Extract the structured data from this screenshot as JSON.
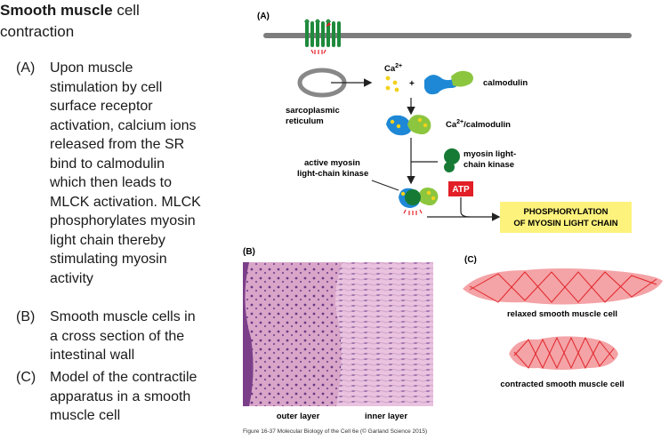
{
  "title": {
    "bold": "Smooth muscle",
    "rest_line1": " cell",
    "line2": "contraction"
  },
  "descriptions": [
    {
      "label": "(A)",
      "lines": [
        "Upon muscle",
        "stimulation by cell",
        "surface receptor",
        "activation, calcium ions",
        "released from the SR",
        "bind to calmodulin",
        "which then leads to",
        "MLCK activation. MLCK",
        "phosphorylates myosin",
        "light chain thereby",
        "stimulating myosin",
        "activity"
      ]
    },
    {
      "label": "(B)",
      "lines": [
        "Smooth muscle cells in",
        "a cross section of the",
        "intestinal wall"
      ]
    },
    {
      "label": "(C)",
      "lines": [
        "Model of the contractile",
        "apparatus in a smooth",
        "muscle cell"
      ]
    }
  ],
  "panel_a": {
    "label": "(A)",
    "ca_label": "Ca",
    "ca_sup": "2+",
    "plus": "+",
    "calmodulin": "calmodulin",
    "sr_line1": "sarcoplasmic",
    "sr_line2": "reticulum",
    "ca_calmodulin_sup": "2+",
    "ca_calmodulin_pre": "Ca",
    "ca_calmodulin_post": "/calmodulin",
    "mlck_line1": "myosin light-",
    "mlck_line2": "chain kinase",
    "active_line1": "active myosin",
    "active_line2": "light-chain kinase",
    "atp": "ATP",
    "result_line1": "PHOSPHORYLATION",
    "result_line2": "OF MYOSIN LIGHT CHAIN",
    "colors": {
      "membrane": "#7d7d7d",
      "receptor": "#1f8a3c",
      "calcium": "#f2d21b",
      "calmodulin_blue": "#1e88d6",
      "calmodulin_green": "#8cc63f",
      "kinase": "#167a35",
      "atp_red": "#e21f26",
      "result_yellow": "#fdf27c"
    }
  },
  "panel_b": {
    "label": "(B)",
    "outer": "outer layer",
    "inner": "inner layer",
    "caption": "Figure 16-37  Molecular Biology of the Cell 6e (© Garland Science 2015)"
  },
  "panel_c": {
    "label": "(C)",
    "relaxed": "relaxed smooth muscle cell",
    "contracted": "contracted smooth muscle cell",
    "cell_color": "#f4a3a6",
    "filament_color": "#e0262b"
  }
}
